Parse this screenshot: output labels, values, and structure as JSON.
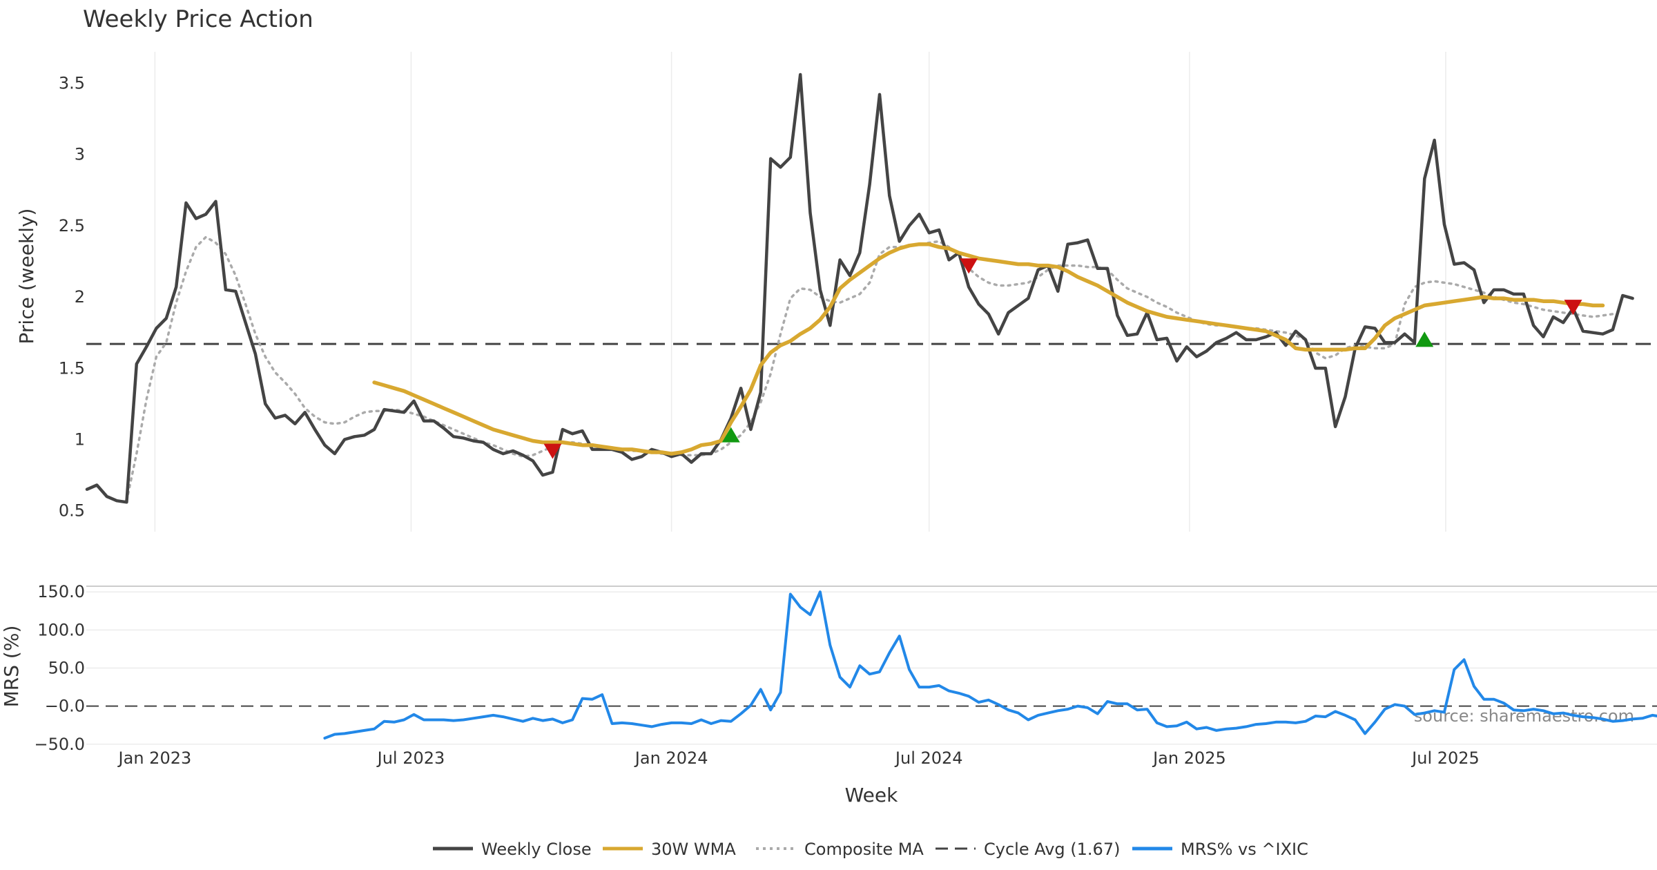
{
  "chart_data": [
    {
      "type": "line",
      "title": "Weekly Price Action",
      "ylabel": "Price (weekly)",
      "xlabel": "",
      "ylim": [
        0.45,
        3.72
      ],
      "yticks": [
        "0.5",
        "1",
        "1.5",
        "2",
        "2.5",
        "3",
        "3.5"
      ],
      "x_start": "2022-11-14",
      "x_step_weeks": 1,
      "cycle_avg": 1.67,
      "series": [
        {
          "name": "Weekly Close",
          "color": "#444444",
          "start_week": 0,
          "values": [
            0.65,
            0.68,
            0.6,
            0.57,
            0.56,
            1.53,
            1.65,
            1.78,
            1.85,
            2.07,
            2.66,
            2.55,
            2.58,
            2.67,
            2.05,
            2.04,
            1.82,
            1.6,
            1.25,
            1.15,
            1.17,
            1.11,
            1.19,
            1.07,
            0.96,
            0.9,
            1.0,
            1.02,
            1.03,
            1.07,
            1.21,
            1.2,
            1.19,
            1.27,
            1.13,
            1.13,
            1.08,
            1.02,
            1.01,
            0.99,
            0.98,
            0.93,
            0.9,
            0.92,
            0.89,
            0.85,
            0.75,
            0.77,
            1.07,
            1.04,
            1.06,
            0.93,
            0.93,
            0.93,
            0.91,
            0.86,
            0.88,
            0.93,
            0.91,
            0.88,
            0.9,
            0.84,
            0.9,
            0.9,
            1.0,
            1.15,
            1.36,
            1.07,
            1.33,
            2.97,
            2.91,
            2.98,
            3.56,
            2.59,
            2.05,
            1.8,
            2.26,
            2.15,
            2.31,
            2.79,
            3.42,
            2.71,
            2.39,
            2.5,
            2.58,
            2.45,
            2.47,
            2.26,
            2.31,
            2.07,
            1.95,
            1.88,
            1.74,
            1.89,
            1.94,
            1.99,
            2.19,
            2.22,
            2.04,
            2.37,
            2.38,
            2.4,
            2.2,
            2.2,
            1.87,
            1.73,
            1.74,
            1.89,
            1.7,
            1.71,
            1.55,
            1.65,
            1.58,
            1.62,
            1.68,
            1.71,
            1.75,
            1.7,
            1.7,
            1.72,
            1.75,
            1.66,
            1.76,
            1.7,
            1.5,
            1.5,
            1.09,
            1.3,
            1.64,
            1.79,
            1.78,
            1.68,
            1.68,
            1.74,
            1.68,
            2.83,
            3.1,
            2.51,
            2.23,
            2.24,
            2.19,
            1.96,
            2.05,
            2.05,
            2.02,
            2.02,
            1.8,
            1.72,
            1.86,
            1.82,
            1.92,
            1.76,
            1.75,
            1.74,
            1.77,
            2.01,
            1.99
          ]
        },
        {
          "name": "30W WMA",
          "color": "#d8a830",
          "start_week": 29,
          "values": [
            1.4,
            1.38,
            1.36,
            1.34,
            1.31,
            1.28,
            1.25,
            1.22,
            1.19,
            1.16,
            1.13,
            1.1,
            1.07,
            1.05,
            1.03,
            1.01,
            0.99,
            0.98,
            0.98,
            0.98,
            0.97,
            0.96,
            0.96,
            0.95,
            0.94,
            0.93,
            0.93,
            0.92,
            0.91,
            0.91,
            0.9,
            0.91,
            0.93,
            0.96,
            0.97,
            0.99,
            1.12,
            1.23,
            1.35,
            1.52,
            1.61,
            1.66,
            1.69,
            1.74,
            1.78,
            1.84,
            1.93,
            2.06,
            2.12,
            2.17,
            2.22,
            2.27,
            2.31,
            2.34,
            2.36,
            2.37,
            2.37,
            2.35,
            2.34,
            2.31,
            2.29,
            2.27,
            2.26,
            2.25,
            2.24,
            2.23,
            2.23,
            2.22,
            2.22,
            2.21,
            2.18,
            2.14,
            2.11,
            2.08,
            2.04,
            2.0,
            1.96,
            1.93,
            1.9,
            1.88,
            1.86,
            1.85,
            1.84,
            1.83,
            1.82,
            1.81,
            1.8,
            1.79,
            1.78,
            1.77,
            1.76,
            1.73,
            1.7,
            1.64,
            1.63,
            1.63,
            1.63,
            1.63,
            1.63,
            1.64,
            1.64,
            1.71,
            1.8,
            1.85,
            1.88,
            1.91,
            1.94,
            1.95,
            1.96,
            1.97,
            1.98,
            1.99,
            2.0,
            1.99,
            1.99,
            1.98,
            1.98,
            1.98,
            1.97,
            1.97,
            1.96,
            1.95,
            1.95,
            1.94,
            1.94
          ]
        },
        {
          "name": "Composite MA",
          "color": "#aaaaaa",
          "start_week": 4,
          "values": [
            0.57,
            0.9,
            1.28,
            1.58,
            1.68,
            1.96,
            2.18,
            2.35,
            2.42,
            2.38,
            2.3,
            2.15,
            1.95,
            1.74,
            1.58,
            1.47,
            1.4,
            1.32,
            1.22,
            1.16,
            1.12,
            1.11,
            1.12,
            1.16,
            1.19,
            1.2,
            1.2,
            1.21,
            1.2,
            1.18,
            1.16,
            1.13,
            1.1,
            1.07,
            1.04,
            1.01,
            0.98,
            0.96,
            0.93,
            0.9,
            0.88,
            0.89,
            0.92,
            0.95,
            0.98,
            0.98,
            0.97,
            0.96,
            0.95,
            0.94,
            0.93,
            0.92,
            0.92,
            0.91,
            0.9,
            0.9,
            0.89,
            0.89,
            0.89,
            0.9,
            0.93,
            0.98,
            1.03,
            1.12,
            1.26,
            1.46,
            1.74,
            1.99,
            2.06,
            2.05,
            2.0,
            1.97,
            1.96,
            1.99,
            2.02,
            2.1,
            2.3,
            2.35,
            2.35,
            2.36,
            2.37,
            2.38,
            2.39,
            2.35,
            2.3,
            2.2,
            2.14,
            2.1,
            2.08,
            2.08,
            2.09,
            2.1,
            2.14,
            2.19,
            2.22,
            2.22,
            2.22,
            2.21,
            2.21,
            2.19,
            2.12,
            2.06,
            2.03,
            2.0,
            1.96,
            1.93,
            1.89,
            1.86,
            1.83,
            1.81,
            1.8,
            1.8,
            1.79,
            1.78,
            1.78,
            1.77,
            1.76,
            1.75,
            1.73,
            1.7,
            1.61,
            1.57,
            1.59,
            1.64,
            1.66,
            1.65,
            1.64,
            1.64,
            1.67,
            1.95,
            2.07,
            2.1,
            2.11,
            2.1,
            2.09,
            2.07,
            2.05,
            2.03,
            2.0,
            1.98,
            1.96,
            1.95,
            1.93,
            1.91,
            1.9,
            1.89,
            1.88,
            1.87,
            1.86,
            1.87,
            1.88
          ]
        }
      ],
      "signals": [
        {
          "type": "sell",
          "week": 47,
          "value": 0.92,
          "color": "#cc1111"
        },
        {
          "type": "buy",
          "week": 65,
          "value": 1.03,
          "color": "#119911"
        },
        {
          "type": "sell",
          "week": 89,
          "value": 2.22,
          "color": "#cc1111"
        },
        {
          "type": "buy",
          "week": 135,
          "value": 1.7,
          "color": "#119911"
        },
        {
          "type": "sell",
          "week": 150,
          "value": 1.93,
          "color": "#cc1111"
        }
      ]
    },
    {
      "type": "line",
      "title": "",
      "ylabel": "MRS (%)",
      "xlabel": "Week",
      "ylim": [
        -52,
        152
      ],
      "yticks": [
        "−50.0",
        "−0.0",
        "50.0",
        "100.0",
        "150.0"
      ],
      "ytick_values": [
        -50,
        0,
        50,
        100,
        150
      ],
      "xticks": [
        {
          "label": "Jan 2023",
          "date": "2023-01-01"
        },
        {
          "label": "Jul 2023",
          "date": "2023-07-01"
        },
        {
          "label": "Jan 2024",
          "date": "2024-01-01"
        },
        {
          "label": "Jul 2024",
          "date": "2024-07-01"
        },
        {
          "label": "Jan 2025",
          "date": "2025-01-01"
        },
        {
          "label": "Jul 2025",
          "date": "2025-07-01"
        }
      ],
      "series": [
        {
          "name": "MRS% vs ^IXIC",
          "color": "#2288e8",
          "start_week": 24,
          "values": [
            -42,
            -37,
            -36,
            -34,
            -32,
            -30,
            -20,
            -21,
            -18,
            -11,
            -18,
            -18,
            -18,
            -19,
            -18,
            -16,
            -14,
            -12,
            -14,
            -17,
            -20,
            -16,
            -19,
            -17,
            -22,
            -18,
            10,
            9,
            15,
            -23,
            -22,
            -23,
            -25,
            -27,
            -24,
            -22,
            -22,
            -23,
            -18,
            -23,
            -19,
            -20,
            -10,
            1,
            22,
            -5,
            18,
            147,
            130,
            120,
            150,
            80,
            38,
            25,
            53,
            42,
            45,
            70,
            92,
            48,
            25,
            25,
            27,
            20,
            17,
            13,
            5,
            8,
            2,
            -5,
            -9,
            -18,
            -12,
            -9,
            -6,
            -4,
            0,
            -2,
            -10,
            6,
            3,
            3,
            -5,
            -4,
            -22,
            -27,
            -26,
            -21,
            -30,
            -28,
            -32,
            -30,
            -29,
            -27,
            -24,
            -23,
            -21,
            -21,
            -22,
            -20,
            -13,
            -14,
            -7,
            -12,
            -18,
            -36,
            -21,
            -4,
            2,
            0,
            -11,
            -9,
            -6,
            -8,
            48,
            61,
            26,
            9,
            9,
            4,
            -5,
            -6,
            -4,
            -6,
            -10,
            -9,
            -12,
            -14,
            -15,
            -17,
            -20,
            -19,
            -17,
            -16,
            -12,
            -14
          ]
        },
        {
          "name": "Cycle Avg (1.67)",
          "color": "#444444",
          "values": []
        }
      ]
    }
  ],
  "legend": [
    {
      "label": "Weekly Close",
      "style": "solid",
      "color": "#444444"
    },
    {
      "label": "30W WMA",
      "style": "solid",
      "color": "#d8a830"
    },
    {
      "label": "Composite MA",
      "style": "dotted",
      "color": "#aaaaaa"
    },
    {
      "label": "Cycle Avg (1.67)",
      "style": "dashed",
      "color": "#444444"
    },
    {
      "label": "MRS% vs ^IXIC",
      "style": "solid",
      "color": "#2288e8"
    }
  ],
  "source_text": "source: sharemaestro.com"
}
